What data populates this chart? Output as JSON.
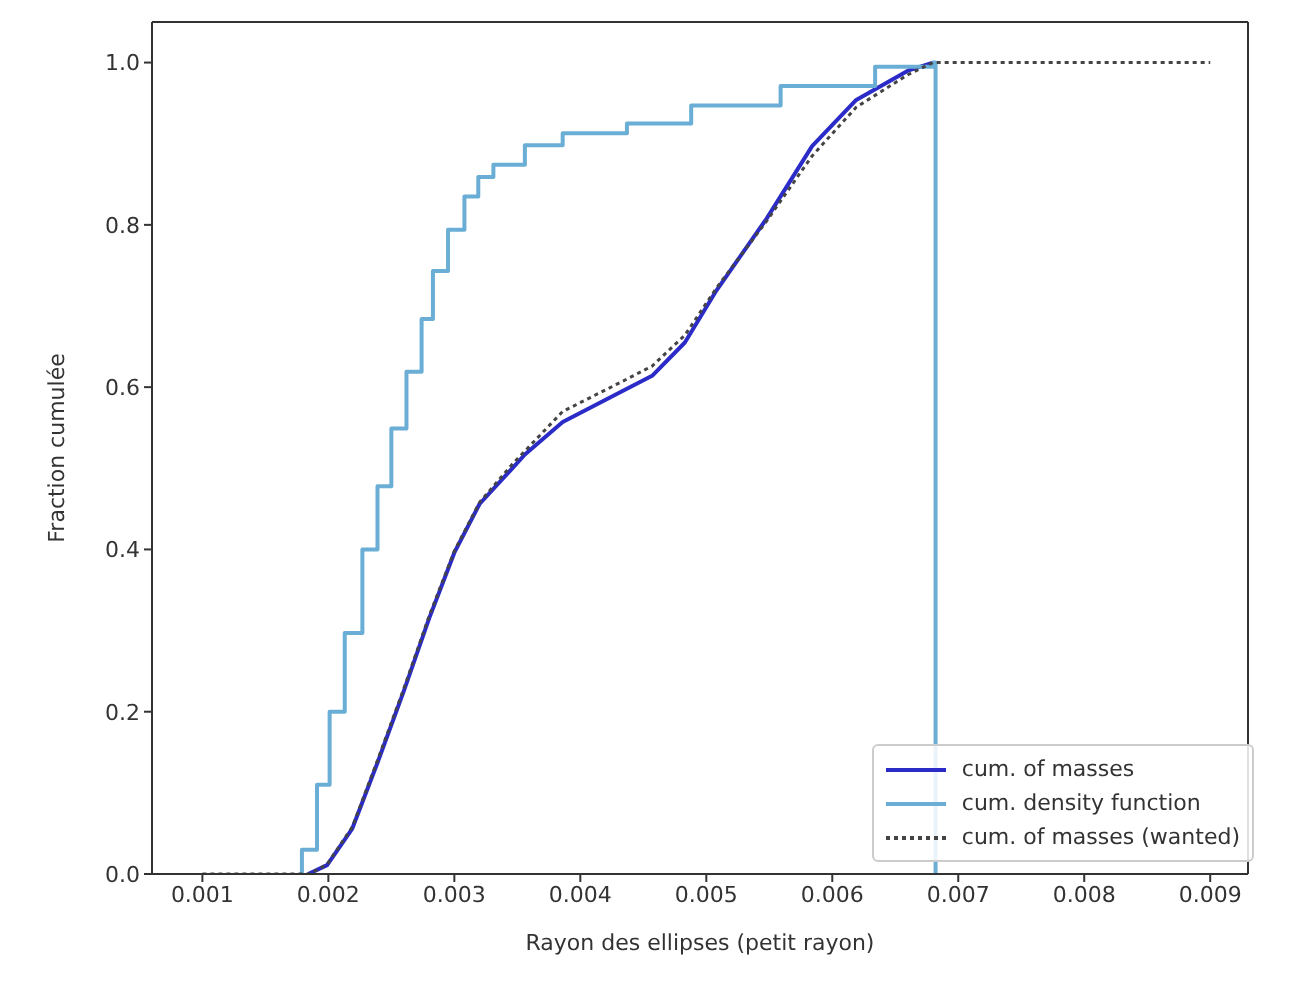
{
  "chart_data": {
    "type": "line",
    "xlabel": "Rayon des ellipses (petit rayon)",
    "ylabel": "Fraction cumulée",
    "xlim": [
      0.0006,
      0.0093
    ],
    "xticks": [
      0.001,
      0.002,
      0.003,
      0.004,
      0.005,
      0.006,
      0.007,
      0.008,
      0.009
    ],
    "ylim": [
      0,
      1.05
    ],
    "yticks": [
      {
        "value": 0,
        "label": "0.0"
      },
      {
        "value": 0.2,
        "label": "0.2"
      },
      {
        "value": 0.4,
        "label": "0.4"
      },
      {
        "value": 0.6,
        "label": "0.6"
      },
      {
        "value": 0.8,
        "label": "0.8"
      },
      {
        "value": 1,
        "label": "1.0"
      }
    ],
    "legend": "bottom right",
    "marker": "none",
    "series": [
      {
        "name": "cum. of masses",
        "color": "#2b2bc8",
        "line_style": "solid",
        "x": [
          0.00184,
          0.00199,
          0.00219,
          0.00239,
          0.0026,
          0.0028,
          0.003,
          0.0032,
          0.00346,
          0.00356,
          0.00386,
          0.00432,
          0.00457,
          0.00483,
          0.00508,
          0.00548,
          0.00584,
          0.00619,
          0.0066,
          0.0068
        ],
        "values": [
          0,
          0.011,
          0.056,
          0.137,
          0.226,
          0.315,
          0.396,
          0.456,
          0.5,
          0.517,
          0.557,
          0.594,
          0.614,
          0.655,
          0.719,
          0.808,
          0.897,
          0.954,
          0.99,
          1.0
        ]
      },
      {
        "name": "cum. density function",
        "color": "#6aaed6",
        "type": "step",
        "line_style": "solid",
        "x": [
          0.00179,
          0.00179,
          0.00191,
          0.00201,
          0.00213,
          0.00227,
          0.00239,
          0.0025,
          0.00262,
          0.00274,
          0.00283,
          0.00295,
          0.00308,
          0.00319,
          0.00331,
          0.00356,
          0.00386,
          0.00437,
          0.00488,
          0.00559,
          0.00634,
          0.0068,
          0.00682
        ],
        "values": [
          0,
          0.03,
          0.11,
          0.2,
          0.297,
          0.4,
          0.478,
          0.549,
          0.619,
          0.684,
          0.743,
          0.794,
          0.835,
          0.859,
          0.874,
          0.898,
          0.913,
          0.925,
          0.947,
          0.971,
          0.995,
          1.0,
          0
        ]
      },
      {
        "name": "cum. of masses (wanted)",
        "color": "#444444",
        "line_style": "dotted",
        "x": [
          0.001,
          0.00185,
          0.00199,
          0.00219,
          0.00239,
          0.0026,
          0.0028,
          0.003,
          0.0032,
          0.00346,
          0.00386,
          0.00432,
          0.00457,
          0.00483,
          0.00508,
          0.00548,
          0.00584,
          0.00619,
          0.0066,
          0.0068,
          0.009
        ],
        "values": [
          0,
          0,
          0.012,
          0.058,
          0.14,
          0.229,
          0.318,
          0.398,
          0.458,
          0.505,
          0.57,
          0.606,
          0.626,
          0.664,
          0.722,
          0.805,
          0.885,
          0.945,
          0.985,
          1.0,
          1.0
        ]
      }
    ]
  }
}
